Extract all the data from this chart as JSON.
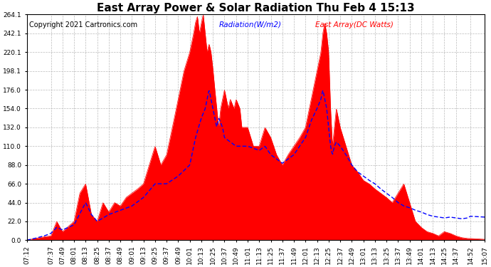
{
  "title": "East Array Power & Solar Radiation Thu Feb 4 15:13",
  "copyright": "Copyright 2021 Cartronics.com",
  "legend_radiation": "Radiation(W/m2)",
  "legend_east": "East Array(DC Watts)",
  "radiation_color": "blue",
  "east_color": "red",
  "fill_color": "red",
  "background_color": "white",
  "grid_color": "#bbbbbb",
  "title_fontsize": 11,
  "label_fontsize": 7.5,
  "tick_fontsize": 6.5,
  "copyright_fontsize": 7,
  "y_ticks": [
    0.0,
    22.0,
    44.0,
    66.0,
    88.0,
    110.0,
    132.0,
    154.0,
    176.0,
    198.1,
    220.1,
    242.1,
    264.1
  ],
  "y_max": 264.1,
  "y_min": 0.0,
  "start_time": "07:12",
  "end_time": "15:07",
  "x_tick_labels": [
    "07:12",
    "07:37",
    "07:49",
    "08:01",
    "08:13",
    "08:25",
    "08:37",
    "08:49",
    "09:01",
    "09:13",
    "09:25",
    "09:37",
    "09:49",
    "10:01",
    "10:13",
    "10:25",
    "10:37",
    "10:49",
    "11:01",
    "11:13",
    "11:25",
    "11:37",
    "11:49",
    "12:01",
    "12:13",
    "12:25",
    "12:37",
    "12:49",
    "13:01",
    "13:13",
    "13:25",
    "13:37",
    "13:49",
    "14:01",
    "14:13",
    "14:25",
    "14:37",
    "14:52",
    "15:07"
  ]
}
